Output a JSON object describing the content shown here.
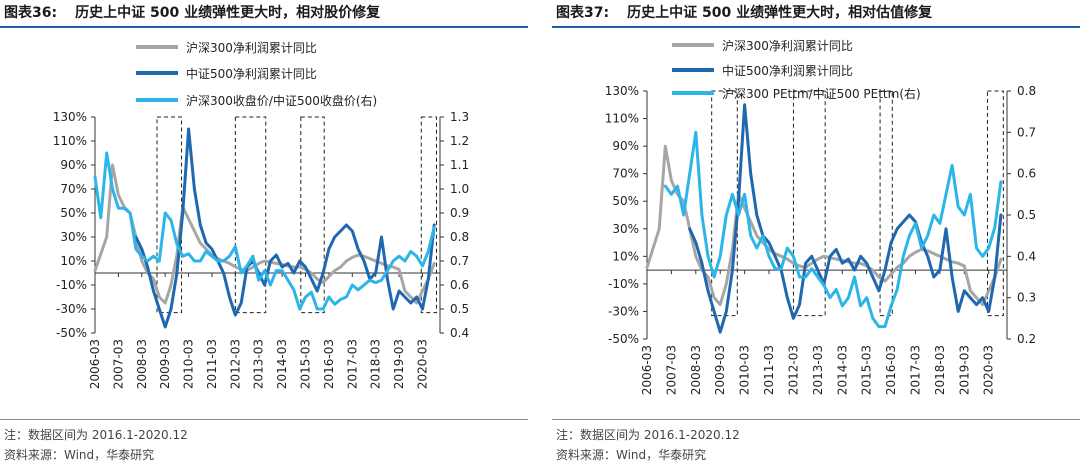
{
  "charts": [
    {
      "fig_no": "图表36:",
      "fig_title": "历史上中证 500 业绩弹性更大时，相对股价修复",
      "note": "注：数据区间为 2016.1-2020.12",
      "source": "资料来源：Wind，华泰研究"
    },
    {
      "fig_no": "图表37:",
      "fig_title": "历史上中证 500 业绩弹性更大时，相对估值修复",
      "note": "注：数据区间为 2016.1-2020.12",
      "source": "资料来源：Wind，华泰研究"
    }
  ],
  "colors": {
    "grey": "#a6a6a6",
    "dark_blue": "#1f68b0",
    "light_blue": "#2cb5e8",
    "rule": "#1f5fa8"
  },
  "chart_data": [
    {
      "type": "line",
      "x_ticks": [
        "2006-03",
        "2007-03",
        "2008-03",
        "2009-03",
        "2010-03",
        "2011-03",
        "2012-03",
        "2013-03",
        "2014-03",
        "2015-03",
        "2016-03",
        "2017-03",
        "2018-03",
        "2019-03",
        "2020-03"
      ],
      "ylim": [
        -50,
        130
      ],
      "y_ticks": [
        "130%",
        "110%",
        "90%",
        "70%",
        "50%",
        "30%",
        "10%",
        "-10%",
        "-30%",
        "-50%"
      ],
      "y2lim": [
        0.4,
        1.3
      ],
      "y2_ticks": [
        "1.3",
        "1.2",
        "1.1",
        "1.0",
        "0.9",
        "0.8",
        "0.7",
        "0.6",
        "0.5",
        "0.4"
      ],
      "legend_position": "top",
      "series": [
        {
          "name": "沪深300净利润累计同比",
          "axis": "left",
          "color": "#a6a6a6",
          "x": [
            2006.25,
            2006.75,
            2007.0,
            2007.25,
            2007.5,
            2007.75,
            2008.0,
            2008.25,
            2008.5,
            2008.75,
            2009.0,
            2009.25,
            2009.5,
            2009.75,
            2010.0,
            2010.25,
            2010.5,
            2010.75,
            2011.0,
            2011.25,
            2011.5,
            2011.75,
            2012.0,
            2012.25,
            2012.5,
            2012.75,
            2013.0,
            2013.25,
            2013.5,
            2013.75,
            2014.0,
            2014.25,
            2014.5,
            2014.75,
            2015.0,
            2015.25,
            2015.5,
            2015.75,
            2016.0,
            2016.25,
            2016.5,
            2016.75,
            2017.0,
            2017.25,
            2017.5,
            2017.75,
            2018.0,
            2018.25,
            2018.5,
            2018.75,
            2019.0,
            2019.25,
            2019.5,
            2019.75,
            2020.0,
            2020.25,
            2020.5,
            2020.75
          ],
          "y": [
            2,
            30,
            90,
            65,
            55,
            50,
            30,
            10,
            0,
            -5,
            -20,
            -25,
            -10,
            15,
            55,
            45,
            35,
            25,
            20,
            15,
            12,
            10,
            8,
            5,
            3,
            2,
            5,
            8,
            10,
            9,
            8,
            7,
            6,
            5,
            5,
            3,
            0,
            -5,
            -8,
            -3,
            2,
            5,
            10,
            13,
            15,
            14,
            12,
            10,
            8,
            6,
            5,
            3,
            -15,
            -20,
            -25,
            -15,
            -5,
            8
          ]
        },
        {
          "name": "中证500净利润累计同比",
          "axis": "left",
          "color": "#1f68b0",
          "x": [
            2008.0,
            2008.25,
            2008.5,
            2008.75,
            2009.0,
            2009.25,
            2009.5,
            2009.75,
            2010.0,
            2010.25,
            2010.5,
            2010.75,
            2011.0,
            2011.25,
            2011.5,
            2011.75,
            2012.0,
            2012.25,
            2012.5,
            2012.75,
            2013.0,
            2013.25,
            2013.5,
            2013.75,
            2014.0,
            2014.25,
            2014.5,
            2014.75,
            2015.0,
            2015.25,
            2015.5,
            2015.75,
            2016.0,
            2016.25,
            2016.5,
            2016.75,
            2017.0,
            2017.25,
            2017.5,
            2017.75,
            2018.0,
            2018.25,
            2018.5,
            2018.75,
            2019.0,
            2019.25,
            2019.5,
            2019.75,
            2020.0,
            2020.25,
            2020.5,
            2020.75
          ],
          "y": [
            30,
            20,
            5,
            -15,
            -30,
            -45,
            -30,
            0,
            50,
            120,
            70,
            40,
            25,
            20,
            10,
            0,
            -20,
            -35,
            -25,
            5,
            10,
            0,
            -10,
            10,
            15,
            5,
            8,
            0,
            10,
            5,
            -5,
            -15,
            0,
            20,
            30,
            35,
            40,
            35,
            20,
            10,
            -5,
            0,
            30,
            -5,
            -30,
            -15,
            -20,
            -25,
            -20,
            -30,
            -5,
            40
          ]
        },
        {
          "name": "沪深300收盘价/中证500收盘价(右)",
          "axis": "right",
          "color": "#2cb5e8",
          "x": [
            2006.25,
            2006.5,
            2006.75,
            2007.0,
            2007.25,
            2007.5,
            2007.75,
            2008.0,
            2008.25,
            2008.5,
            2008.75,
            2009.0,
            2009.25,
            2009.5,
            2009.75,
            2010.0,
            2010.25,
            2010.5,
            2010.75,
            2011.0,
            2011.25,
            2011.5,
            2011.75,
            2012.0,
            2012.25,
            2012.5,
            2012.75,
            2013.0,
            2013.25,
            2013.5,
            2013.75,
            2014.0,
            2014.25,
            2014.5,
            2014.75,
            2015.0,
            2015.25,
            2015.5,
            2015.75,
            2016.0,
            2016.25,
            2016.5,
            2016.75,
            2017.0,
            2017.25,
            2017.5,
            2017.75,
            2018.0,
            2018.25,
            2018.5,
            2018.75,
            2019.0,
            2019.25,
            2019.5,
            2019.75,
            2020.0,
            2020.25,
            2020.5,
            2020.75
          ],
          "y": [
            1.05,
            0.88,
            1.15,
            1.0,
            0.92,
            0.92,
            0.9,
            0.75,
            0.72,
            0.7,
            0.72,
            0.7,
            0.9,
            0.87,
            0.77,
            0.72,
            0.73,
            0.7,
            0.7,
            0.74,
            0.72,
            0.7,
            0.7,
            0.72,
            0.76,
            0.65,
            0.68,
            0.72,
            0.62,
            0.66,
            0.6,
            0.66,
            0.66,
            0.62,
            0.58,
            0.5,
            0.55,
            0.57,
            0.5,
            0.5,
            0.55,
            0.52,
            0.54,
            0.55,
            0.6,
            0.58,
            0.6,
            0.62,
            0.61,
            0.62,
            0.66,
            0.7,
            0.72,
            0.7,
            0.74,
            0.72,
            0.68,
            0.74,
            0.84
          ]
        }
      ],
      "highlight_ranges": [
        [
          2008.9,
          2009.95
        ],
        [
          2012.25,
          2013.55
        ],
        [
          2015.05,
          2016.05
        ],
        [
          2020.2,
          2020.85
        ]
      ],
      "highlight_y": [
        -33,
        130
      ]
    },
    {
      "type": "line",
      "x_ticks": [
        "2006-03",
        "2007-03",
        "2008-03",
        "2009-03",
        "2010-03",
        "2011-03",
        "2012-03",
        "2013-03",
        "2014-03",
        "2015-03",
        "2016-03",
        "2017-03",
        "2018-03",
        "2019-03",
        "2020-03"
      ],
      "ylim": [
        -50,
        130
      ],
      "y_ticks": [
        "130%",
        "110%",
        "90%",
        "70%",
        "50%",
        "30%",
        "10%",
        "-10%",
        "-30%",
        "-50%"
      ],
      "y2lim": [
        0.2,
        0.8
      ],
      "y2_ticks": [
        "0.8",
        "0.7",
        "0.6",
        "0.5",
        "0.4",
        "0.3",
        "0.2"
      ],
      "legend_position": "top",
      "series": [
        {
          "name": "沪深300净利润累计同比",
          "axis": "left",
          "color": "#a6a6a6",
          "x": [
            2006.25,
            2006.75,
            2007.0,
            2007.25,
            2007.5,
            2007.75,
            2008.0,
            2008.25,
            2008.5,
            2008.75,
            2009.0,
            2009.25,
            2009.5,
            2009.75,
            2010.0,
            2010.25,
            2010.5,
            2010.75,
            2011.0,
            2011.25,
            2011.5,
            2011.75,
            2012.0,
            2012.25,
            2012.5,
            2012.75,
            2013.0,
            2013.25,
            2013.5,
            2013.75,
            2014.0,
            2014.25,
            2014.5,
            2014.75,
            2015.0,
            2015.25,
            2015.5,
            2015.75,
            2016.0,
            2016.25,
            2016.5,
            2016.75,
            2017.0,
            2017.25,
            2017.5,
            2017.75,
            2018.0,
            2018.25,
            2018.5,
            2018.75,
            2019.0,
            2019.25,
            2019.5,
            2019.75,
            2020.0,
            2020.25,
            2020.5,
            2020.75
          ],
          "y": [
            2,
            30,
            90,
            65,
            55,
            50,
            30,
            10,
            0,
            -5,
            -20,
            -25,
            -10,
            15,
            55,
            45,
            35,
            25,
            20,
            15,
            12,
            10,
            8,
            5,
            3,
            2,
            5,
            8,
            10,
            9,
            8,
            7,
            6,
            5,
            5,
            3,
            0,
            -5,
            -8,
            -3,
            2,
            5,
            10,
            13,
            15,
            14,
            12,
            10,
            8,
            6,
            5,
            3,
            -15,
            -20,
            -25,
            -15,
            -5,
            8
          ]
        },
        {
          "name": "中证500净利润累计同比",
          "axis": "left",
          "color": "#1f68b0",
          "x": [
            2008.0,
            2008.25,
            2008.5,
            2008.75,
            2009.0,
            2009.25,
            2009.5,
            2009.75,
            2010.0,
            2010.25,
            2010.5,
            2010.75,
            2011.0,
            2011.25,
            2011.5,
            2011.75,
            2012.0,
            2012.25,
            2012.5,
            2012.75,
            2013.0,
            2013.25,
            2013.5,
            2013.75,
            2014.0,
            2014.25,
            2014.5,
            2014.75,
            2015.0,
            2015.25,
            2015.5,
            2015.75,
            2016.0,
            2016.25,
            2016.5,
            2016.75,
            2017.0,
            2017.25,
            2017.5,
            2017.75,
            2018.0,
            2018.25,
            2018.5,
            2018.75,
            2019.0,
            2019.25,
            2019.5,
            2019.75,
            2020.0,
            2020.25,
            2020.5,
            2020.75
          ],
          "y": [
            30,
            20,
            5,
            -15,
            -30,
            -45,
            -30,
            0,
            50,
            120,
            70,
            40,
            25,
            20,
            10,
            0,
            -20,
            -35,
            -25,
            5,
            10,
            0,
            -10,
            10,
            15,
            5,
            8,
            0,
            10,
            5,
            -5,
            -15,
            0,
            20,
            30,
            35,
            40,
            35,
            20,
            10,
            -5,
            0,
            30,
            -5,
            -30,
            -15,
            -20,
            -25,
            -20,
            -30,
            -5,
            40
          ]
        },
        {
          "name": "沪深300 PEttm/中证500 PEttm(右)",
          "axis": "right",
          "color": "#2cb5e8",
          "x": [
            2007.0,
            2007.25,
            2007.5,
            2007.75,
            2008.0,
            2008.25,
            2008.5,
            2008.75,
            2009.0,
            2009.25,
            2009.5,
            2009.75,
            2010.0,
            2010.25,
            2010.5,
            2010.75,
            2011.0,
            2011.25,
            2011.5,
            2011.75,
            2012.0,
            2012.25,
            2012.5,
            2012.75,
            2013.0,
            2013.25,
            2013.5,
            2013.75,
            2014.0,
            2014.25,
            2014.5,
            2014.75,
            2015.0,
            2015.25,
            2015.5,
            2015.75,
            2016.0,
            2016.25,
            2016.5,
            2016.75,
            2017.0,
            2017.25,
            2017.5,
            2017.75,
            2018.0,
            2018.25,
            2018.5,
            2018.75,
            2019.0,
            2019.25,
            2019.5,
            2019.75,
            2020.0,
            2020.25,
            2020.5,
            2020.75
          ],
          "y": [
            0.57,
            0.55,
            0.57,
            0.5,
            0.6,
            0.7,
            0.5,
            0.4,
            0.35,
            0.4,
            0.5,
            0.55,
            0.5,
            0.55,
            0.45,
            0.42,
            0.45,
            0.4,
            0.37,
            0.37,
            0.42,
            0.4,
            0.35,
            0.35,
            0.37,
            0.35,
            0.33,
            0.3,
            0.32,
            0.28,
            0.3,
            0.35,
            0.28,
            0.3,
            0.25,
            0.23,
            0.23,
            0.28,
            0.32,
            0.4,
            0.45,
            0.48,
            0.42,
            0.45,
            0.5,
            0.48,
            0.55,
            0.62,
            0.52,
            0.5,
            0.55,
            0.42,
            0.4,
            0.42,
            0.47,
            0.58
          ]
        }
      ],
      "highlight_ranges": [
        [
          2008.9,
          2009.95
        ],
        [
          2012.25,
          2013.55
        ],
        [
          2015.8,
          2016.3
        ],
        [
          2020.2,
          2020.85
        ]
      ],
      "highlight_y": [
        -33,
        130
      ]
    }
  ]
}
